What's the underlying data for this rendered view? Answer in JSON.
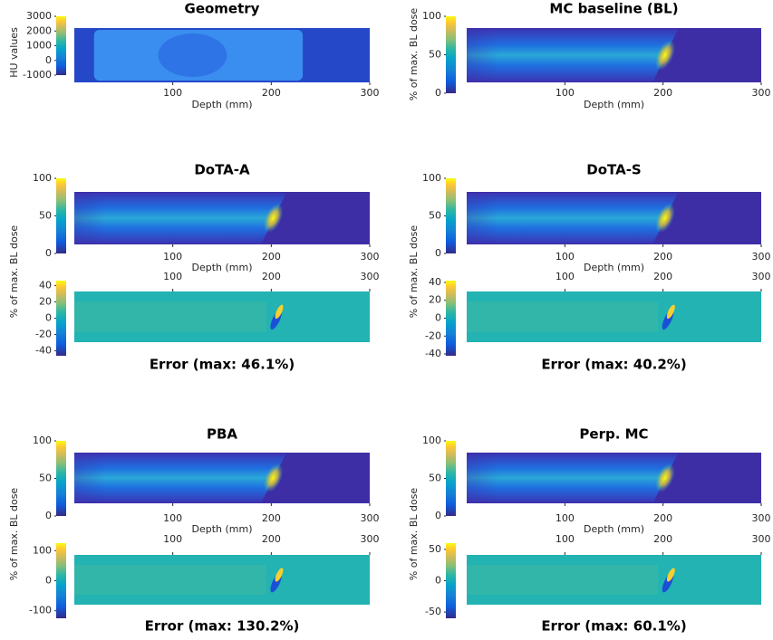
{
  "chart_data": [
    {
      "type": "heatmap",
      "title": "Geometry",
      "xlabel": "Depth (mm)",
      "ylabel": "HU values",
      "xlim": [
        0,
        300
      ],
      "xticks": [
        100,
        200,
        300
      ],
      "clim": [
        -1000,
        3000
      ],
      "cticks": [
        -1000,
        0,
        1000,
        2000,
        3000
      ]
    },
    {
      "type": "heatmap",
      "title": "MC baseline (BL)",
      "xlabel": "Depth (mm)",
      "ylabel": "% of max. BL dose",
      "xlim": [
        0,
        300
      ],
      "xticks": [
        100,
        200,
        300
      ],
      "clim": [
        0,
        100
      ],
      "cticks": [
        0,
        50,
        100
      ]
    },
    {
      "type": "heatmap",
      "title": "DoTA-A",
      "xlabel": "Depth (mm)",
      "ylabel": "% of max. BL dose",
      "xlim": [
        0,
        300
      ],
      "xticks": [
        100,
        200,
        300
      ],
      "clim": [
        0,
        100
      ],
      "cticks": [
        0,
        50,
        100
      ]
    },
    {
      "type": "heatmap",
      "title": "Error (max: 46.1%)",
      "xlim": [
        0,
        300
      ],
      "xticks": [
        100,
        200,
        300
      ],
      "clim": [
        -46,
        46
      ],
      "cticks": [
        -40,
        -20,
        0,
        20,
        40
      ]
    },
    {
      "type": "heatmap",
      "title": "DoTA-S",
      "xlabel": "Depth (mm)",
      "ylabel": "% of max. BL dose",
      "xlim": [
        0,
        300
      ],
      "xticks": [
        100,
        200,
        300
      ],
      "clim": [
        0,
        100
      ],
      "cticks": [
        0,
        50,
        100
      ]
    },
    {
      "type": "heatmap",
      "title": "Error (max: 40.2%)",
      "xlim": [
        0,
        300
      ],
      "xticks": [
        100,
        200,
        300
      ],
      "clim": [
        -42,
        42
      ],
      "cticks": [
        -40,
        -20,
        0,
        20,
        40
      ]
    },
    {
      "type": "heatmap",
      "title": "PBA",
      "xlabel": "Depth (mm)",
      "ylabel": "% of max. BL dose",
      "xlim": [
        0,
        300
      ],
      "xticks": [
        100,
        200,
        300
      ],
      "clim": [
        0,
        100
      ],
      "cticks": [
        0,
        50,
        100
      ]
    },
    {
      "type": "heatmap",
      "title": "Error (max: 130.2%)",
      "xlim": [
        0,
        300
      ],
      "xticks": [
        100,
        200,
        300
      ],
      "clim": [
        -125,
        125
      ],
      "cticks": [
        -100,
        0,
        100
      ]
    },
    {
      "type": "heatmap",
      "title": "Perp. MC",
      "xlabel": "Depth (mm)",
      "ylabel": "% of max. BL dose",
      "xlim": [
        0,
        300
      ],
      "xticks": [
        100,
        200,
        300
      ],
      "clim": [
        0,
        100
      ],
      "cticks": [
        0,
        50,
        100
      ]
    },
    {
      "type": "heatmap",
      "title": "Error (max: 60.1%)",
      "xlim": [
        0,
        300
      ],
      "xticks": [
        100,
        200,
        300
      ],
      "clim": [
        -60,
        60
      ],
      "cticks": [
        -50,
        0,
        50
      ]
    }
  ]
}
